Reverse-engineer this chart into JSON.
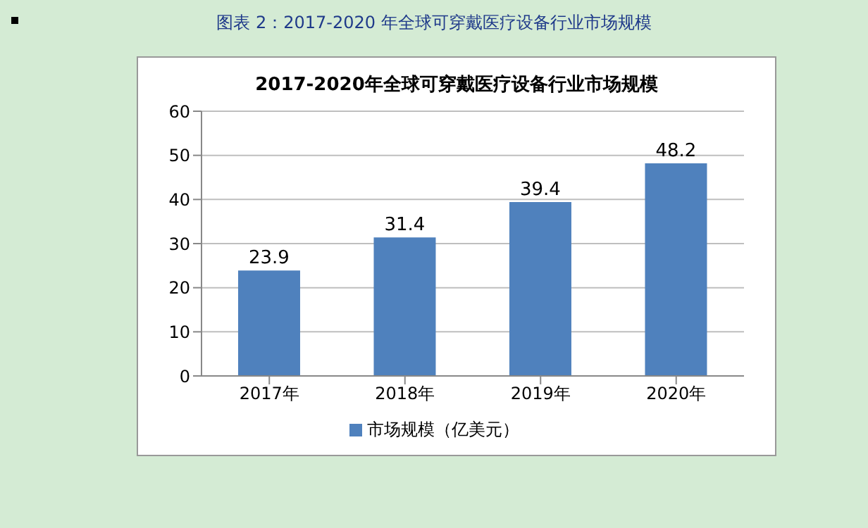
{
  "chart_data": {
    "type": "bar",
    "title": "2017-2020年全球可穿戴医疗设备行业市场规模",
    "annotations": [
      "图表 2：2017-2020 年全球可穿戴医疗设备行业市场规模"
    ],
    "categories": [
      "2017年",
      "2018年",
      "2019年",
      "2020年"
    ],
    "series": [
      {
        "name": "市场规模（亿美元）",
        "color": "#4f81bd",
        "values": [
          23.9,
          31.4,
          39.4,
          48.2
        ]
      }
    ],
    "ylim": [
      0,
      60
    ],
    "yticks": [
      0,
      10,
      20,
      30,
      40,
      50,
      60
    ],
    "grid": "y",
    "legend": "bottom",
    "data_labels": true
  }
}
